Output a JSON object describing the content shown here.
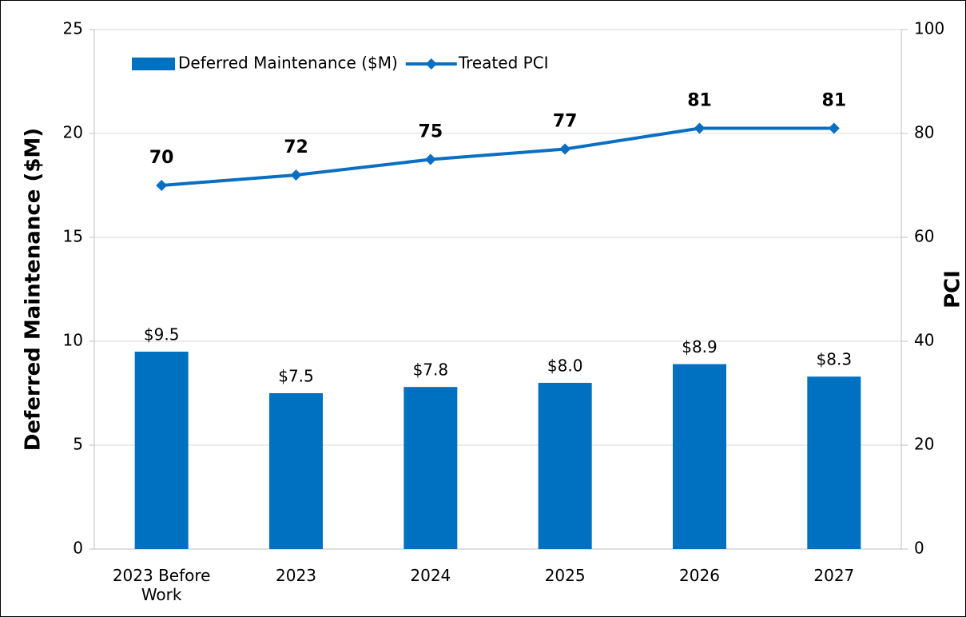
{
  "chart_data": {
    "type": "bar+line",
    "categories": [
      "2023 Before Work",
      "2023",
      "2024",
      "2025",
      "2026",
      "2027"
    ],
    "series": [
      {
        "name": "Deferred Maintenance ($M)",
        "type": "bar",
        "color": "#0070c0",
        "values": [
          9.5,
          7.5,
          7.8,
          8.0,
          8.9,
          8.3
        ],
        "value_labels": [
          "$9.5",
          "$7.5",
          "$7.8",
          "$8.0",
          "$8.9",
          "$8.3"
        ]
      },
      {
        "name": "Treated PCI",
        "type": "line",
        "color": "#0a6fc2",
        "axis": "y2",
        "values": [
          70,
          72,
          75,
          77,
          81,
          81
        ]
      }
    ],
    "y_label": "Deferred Maintenance ($M)",
    "y2_label": "PCI",
    "ylim": [
      0,
      25
    ],
    "yticks": [
      0,
      5,
      10,
      15,
      20,
      25
    ],
    "y2lim": [
      0,
      100
    ],
    "y2ticks": [
      0,
      20,
      40,
      60,
      80,
      100
    ],
    "grid": true,
    "legend": "top-left"
  }
}
